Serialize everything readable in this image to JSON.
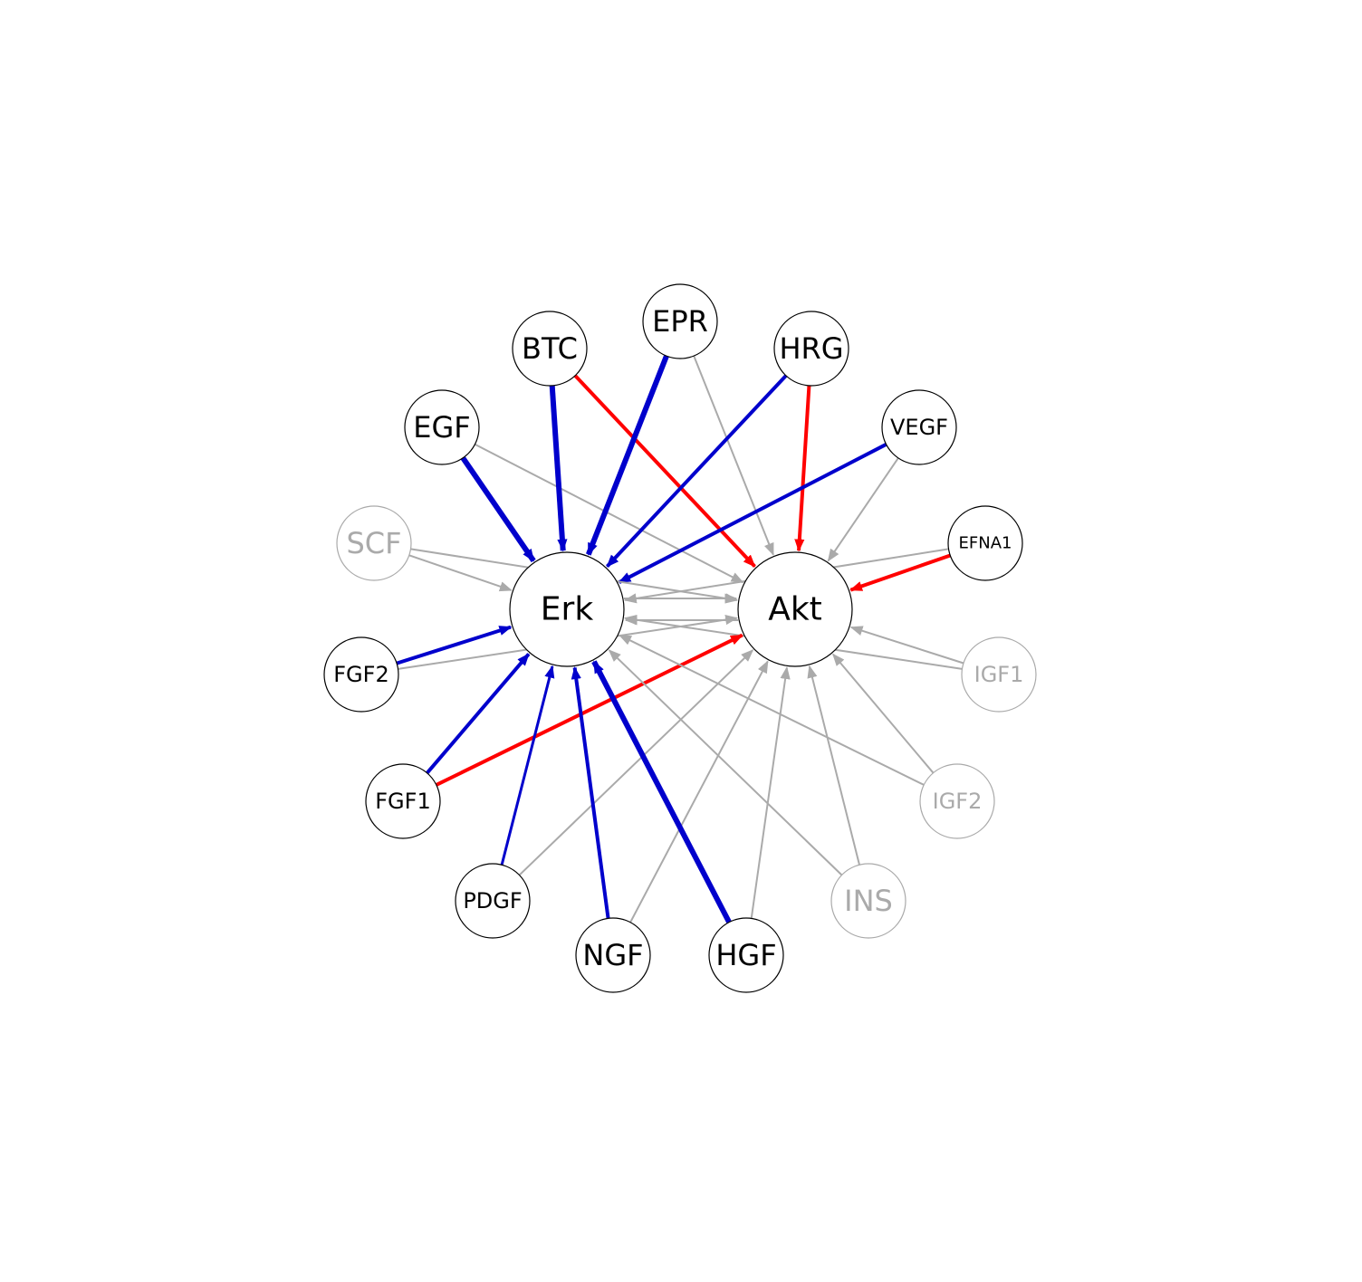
{
  "colors": {
    "gray": "#aaaaaa",
    "blue": "#0000cc",
    "red": "#ff0000",
    "active_stroke": "#000000",
    "inactive_stroke": "#aaaaaa"
  },
  "nodes": [
    {
      "id": "Erk",
      "label": "Erk",
      "size": "hub",
      "active": true
    },
    {
      "id": "Akt",
      "label": "Akt",
      "size": "hub",
      "active": true
    },
    {
      "id": "EPR",
      "label": "EPR",
      "size": "ligand",
      "active": true
    },
    {
      "id": "BTC",
      "label": "BTC",
      "size": "ligand",
      "active": true
    },
    {
      "id": "HRG",
      "label": "HRG",
      "size": "ligand",
      "active": true
    },
    {
      "id": "EGF",
      "label": "EGF",
      "size": "ligand",
      "active": true
    },
    {
      "id": "VEGF",
      "label": "VEGF",
      "size": "ligand",
      "active": true
    },
    {
      "id": "SCF",
      "label": "SCF",
      "size": "ligand",
      "active": false
    },
    {
      "id": "EFNA1",
      "label": "EFNA1",
      "size": "ligand",
      "active": true
    },
    {
      "id": "FGF2",
      "label": "FGF2",
      "size": "ligand",
      "active": true
    },
    {
      "id": "IGF1",
      "label": "IGF1",
      "size": "ligand",
      "active": false
    },
    {
      "id": "FGF1",
      "label": "FGF1",
      "size": "ligand",
      "active": true
    },
    {
      "id": "IGF2",
      "label": "IGF2",
      "size": "ligand",
      "active": false
    },
    {
      "id": "PDGF",
      "label": "PDGF",
      "size": "ligand",
      "active": true
    },
    {
      "id": "INS",
      "label": "INS",
      "size": "ligand",
      "active": false
    },
    {
      "id": "NGF",
      "label": "NGF",
      "size": "ligand",
      "active": true
    },
    {
      "id": "HGF",
      "label": "HGF",
      "size": "ligand",
      "active": true
    }
  ],
  "edges": [
    {
      "from": "EGF",
      "to": "Erk",
      "color": "blue",
      "weight": 3
    },
    {
      "from": "EGF",
      "to": "Akt",
      "color": "gray",
      "weight": 1
    },
    {
      "from": "BTC",
      "to": "Erk",
      "color": "blue",
      "weight": 3
    },
    {
      "from": "BTC",
      "to": "Akt",
      "color": "red",
      "weight": 2
    },
    {
      "from": "EPR",
      "to": "Erk",
      "color": "blue",
      "weight": 3
    },
    {
      "from": "EPR",
      "to": "Akt",
      "color": "gray",
      "weight": 1
    },
    {
      "from": "HRG",
      "to": "Erk",
      "color": "blue",
      "weight": 2
    },
    {
      "from": "HRG",
      "to": "Akt",
      "color": "red",
      "weight": 2
    },
    {
      "from": "VEGF",
      "to": "Erk",
      "color": "blue",
      "weight": 2
    },
    {
      "from": "VEGF",
      "to": "Akt",
      "color": "gray",
      "weight": 1
    },
    {
      "from": "SCF",
      "to": "Erk",
      "color": "gray",
      "weight": 1
    },
    {
      "from": "SCF",
      "to": "Akt",
      "color": "gray",
      "weight": 1
    },
    {
      "from": "EFNA1",
      "to": "Akt",
      "color": "red",
      "weight": 2
    },
    {
      "from": "EFNA1",
      "to": "Erk",
      "color": "gray",
      "weight": 1
    },
    {
      "from": "FGF2",
      "to": "Erk",
      "color": "blue",
      "weight": 2
    },
    {
      "from": "FGF2",
      "to": "Akt",
      "color": "gray",
      "weight": 1
    },
    {
      "from": "IGF1",
      "to": "Akt",
      "color": "gray",
      "weight": 1
    },
    {
      "from": "IGF1",
      "to": "Erk",
      "color": "gray",
      "weight": 1
    },
    {
      "from": "FGF1",
      "to": "Erk",
      "color": "blue",
      "weight": 2
    },
    {
      "from": "FGF1",
      "to": "Akt",
      "color": "red",
      "weight": 2
    },
    {
      "from": "IGF2",
      "to": "Akt",
      "color": "gray",
      "weight": 1
    },
    {
      "from": "IGF2",
      "to": "Erk",
      "color": "gray",
      "weight": 1
    },
    {
      "from": "PDGF",
      "to": "Erk",
      "color": "blue",
      "weight": 1.5
    },
    {
      "from": "PDGF",
      "to": "Akt",
      "color": "gray",
      "weight": 1
    },
    {
      "from": "INS",
      "to": "Akt",
      "color": "gray",
      "weight": 1
    },
    {
      "from": "INS",
      "to": "Erk",
      "color": "gray",
      "weight": 1
    },
    {
      "from": "NGF",
      "to": "Erk",
      "color": "blue",
      "weight": 2
    },
    {
      "from": "NGF",
      "to": "Akt",
      "color": "gray",
      "weight": 1
    },
    {
      "from": "HGF",
      "to": "Erk",
      "color": "blue",
      "weight": 3
    },
    {
      "from": "HGF",
      "to": "Akt",
      "color": "gray",
      "weight": 1
    },
    {
      "from": "Erk",
      "to": "Akt",
      "color": "gray",
      "weight": 1
    },
    {
      "from": "Akt",
      "to": "Erk",
      "color": "gray",
      "weight": 1
    }
  ]
}
